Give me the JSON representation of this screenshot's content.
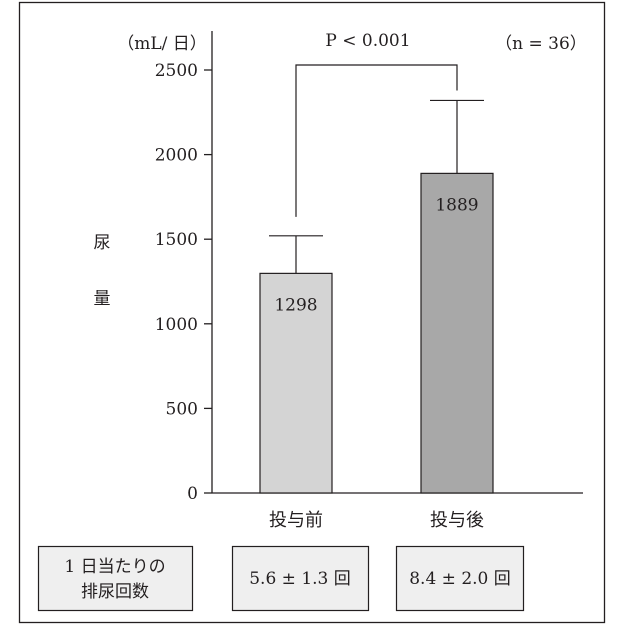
{
  "chart_data": {
    "type": "bar",
    "categories": [
      "投与前",
      "投与後"
    ],
    "values": [
      1298,
      1889
    ],
    "error_upper": [
      1520,
      2320
    ],
    "value_labels": [
      "1298",
      "1889"
    ],
    "bar_colors": [
      "#d4d4d4",
      "#a8a8a8"
    ],
    "ylim": [
      0,
      2500
    ],
    "yticks": [
      0,
      500,
      1000,
      1500,
      2000,
      2500
    ],
    "ytick_labels": [
      "0",
      "500",
      "1000",
      "1500",
      "2000",
      "2500"
    ],
    "yunit": "（mL/ 日）",
    "ylabel_chars": [
      "尿",
      "量"
    ],
    "significance": "P < 0.001",
    "sample_size": "（n = 36）",
    "grid": false
  },
  "table": {
    "row_header": [
      "1 日当たりの",
      "排尿回数"
    ],
    "cells": [
      "5.6 ± 1.3 回",
      "8.4 ± 2.0 回"
    ]
  }
}
